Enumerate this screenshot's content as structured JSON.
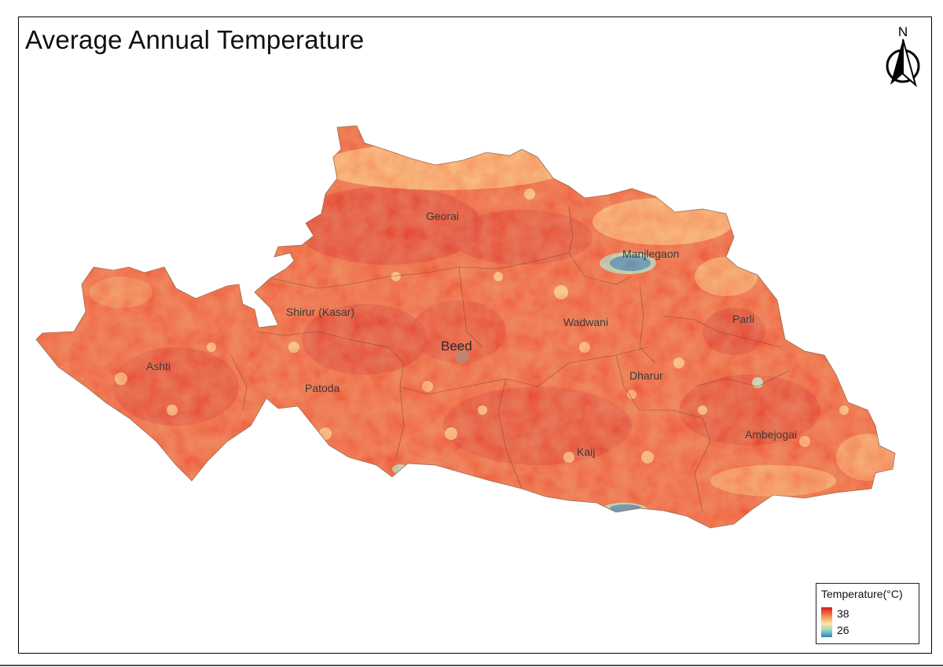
{
  "title": "Average Annual Temperature",
  "north_label": "N",
  "legend": {
    "title": "Temperature(°C)",
    "max": "38",
    "min": "26",
    "colors": {
      "high": "#d7191c",
      "mid": "#fde5a3",
      "low": "#2b83ba"
    }
  },
  "places": [
    {
      "name": "Georai"
    },
    {
      "name": "Manjlegaon"
    },
    {
      "name": "Shirur (Kasar)"
    },
    {
      "name": "Beed"
    },
    {
      "name": "Wadwani"
    },
    {
      "name": "Parli"
    },
    {
      "name": "Ashti"
    },
    {
      "name": "Patoda"
    },
    {
      "name": "Dharur"
    },
    {
      "name": "Ambejogai"
    },
    {
      "name": "Kaij"
    }
  ]
}
